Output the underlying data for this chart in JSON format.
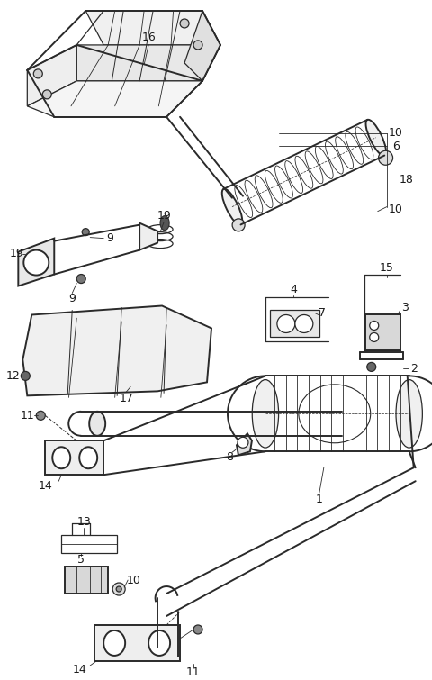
{
  "bg_color": "#ffffff",
  "line_color": "#2a2a2a",
  "label_color": "#1a1a1a",
  "lw": 0.9,
  "figsize": [
    4.8,
    7.55
  ],
  "dpi": 100
}
